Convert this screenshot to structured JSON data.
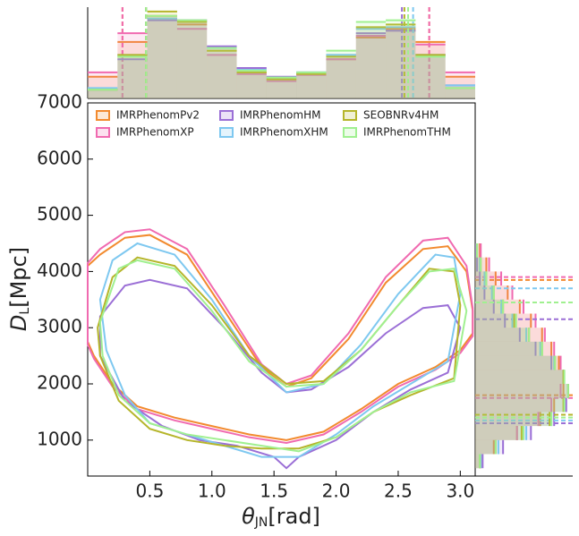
{
  "chart_data": {
    "type": "contour",
    "xlabel": {
      "symbol": "θ",
      "sub": "JN",
      "unit": "[rad]"
    },
    "ylabel": {
      "symbol": "D",
      "sub": "L",
      "unit": "[Mpc]"
    },
    "xlim": [
      0,
      3.12
    ],
    "ylim": [
      360,
      7000
    ],
    "xticks": [
      0.5,
      {
        "value": 1,
        "label": "1.0"
      },
      1.5,
      {
        "value": 2,
        "label": "2.0"
      },
      2.5,
      {
        "value": 3,
        "label": "3.0"
      }
    ],
    "yticks": [
      1000,
      2000,
      3000,
      4000,
      5000,
      6000,
      7000
    ],
    "legend": "upper left",
    "top_hist": {
      "bins": [
        0,
        0.24,
        0.48,
        0.72,
        0.96,
        1.2,
        1.44,
        1.68,
        1.92,
        2.16,
        2.4,
        2.64,
        2.88,
        3.12
      ],
      "ylim": [
        0,
        1.05
      ]
    },
    "right_hist": {
      "bins": [
        500,
        750,
        1000,
        1250,
        1500,
        1750,
        2000,
        2250,
        2500,
        2750,
        3000,
        3250,
        3500,
        3750,
        4000,
        4250,
        4500
      ],
      "xlim": [
        0,
        1.05
      ]
    },
    "series": [
      {
        "name": "IMRPhenomPv2",
        "color": "#f28a2e",
        "theta": [
          0.0,
          0.1,
          0.3,
          0.5,
          0.8,
          1.1,
          1.4,
          1.6,
          1.8,
          2.1,
          2.4,
          2.7,
          2.9,
          3.05,
          3.1,
          3.1,
          3.0,
          2.8,
          2.5,
          2.2,
          1.9,
          1.6,
          1.3,
          1.0,
          0.7,
          0.4,
          0.2,
          0.05,
          0.0
        ],
        "dl": [
          4100,
          4300,
          4600,
          4650,
          4300,
          3300,
          2300,
          1950,
          2100,
          2800,
          3800,
          4400,
          4450,
          4000,
          3300,
          2900,
          2600,
          2300,
          2000,
          1550,
          1150,
          1000,
          1100,
          1250,
          1400,
          1600,
          2000,
          2500,
          2750
        ],
        "theta_hist": [
          0.25,
          0.65,
          0.95,
          0.85,
          0.55,
          0.3,
          0.22,
          0.28,
          0.45,
          0.7,
          0.8,
          0.65,
          0.25
        ],
        "dl_hist": [
          0.05,
          0.2,
          0.45,
          0.7,
          0.85,
          0.95,
          0.95,
          0.9,
          0.82,
          0.72,
          0.6,
          0.48,
          0.35,
          0.22,
          0.12,
          0.05
        ],
        "theta_interval": [
          0.28,
          2.75
        ],
        "dl_interval": [
          1800,
          3850
        ]
      },
      {
        "name": "IMRPhenomXP",
        "color": "#f06ab0",
        "theta": [
          0.0,
          0.1,
          0.3,
          0.5,
          0.8,
          1.1,
          1.4,
          1.6,
          1.8,
          2.1,
          2.4,
          2.7,
          2.9,
          3.05,
          3.1,
          3.1,
          3.0,
          2.8,
          2.5,
          2.2,
          1.9,
          1.6,
          1.3,
          1.0,
          0.7,
          0.4,
          0.2,
          0.05,
          0.0
        ],
        "dl": [
          4150,
          4400,
          4700,
          4750,
          4400,
          3400,
          2350,
          2000,
          2150,
          2900,
          3900,
          4550,
          4600,
          4100,
          3350,
          2850,
          2550,
          2250,
          1950,
          1500,
          1100,
          950,
          1050,
          1200,
          1350,
          1550,
          1950,
          2450,
          2700
        ],
        "theta_hist": [
          0.3,
          0.75,
          0.92,
          0.8,
          0.5,
          0.28,
          0.2,
          0.27,
          0.45,
          0.72,
          0.78,
          0.62,
          0.3
        ],
        "dl_hist": [
          0.06,
          0.22,
          0.45,
          0.68,
          0.82,
          0.92,
          0.95,
          0.92,
          0.85,
          0.75,
          0.65,
          0.52,
          0.4,
          0.28,
          0.15,
          0.06
        ],
        "theta_interval": [
          0.28,
          2.75
        ],
        "dl_interval": [
          1750,
          3900
        ]
      },
      {
        "name": "IMRPhenomHM",
        "color": "#9b6fd6",
        "theta": [
          0.1,
          0.3,
          0.5,
          0.8,
          1.1,
          1.4,
          1.6,
          1.8,
          2.1,
          2.4,
          2.7,
          2.9,
          3.0,
          2.9,
          2.6,
          2.3,
          2.0,
          1.7,
          1.6,
          1.5,
          1.2,
          0.9,
          0.6,
          0.3,
          0.1
        ],
        "dl": [
          3200,
          3750,
          3850,
          3700,
          3000,
          2200,
          1850,
          1900,
          2300,
          2900,
          3350,
          3400,
          3000,
          2200,
          1900,
          1500,
          1000,
          700,
          500,
          700,
          900,
          1000,
          1250,
          1700,
          2500
        ],
        "theta_hist": [
          0.1,
          0.45,
          0.9,
          0.9,
          0.6,
          0.35,
          0.25,
          0.3,
          0.5,
          0.75,
          0.78,
          0.5,
          0.15
        ],
        "dl_hist": [
          0.08,
          0.3,
          0.6,
          0.85,
          0.98,
          1.0,
          0.95,
          0.82,
          0.65,
          0.48,
          0.32,
          0.2,
          0.1,
          0.05,
          0.02,
          0.01
        ],
        "theta_interval": [
          0.47,
          2.53
        ],
        "dl_interval": [
          1300,
          3150
        ]
      },
      {
        "name": "IMRPhenomXHM",
        "color": "#7ec8f0",
        "theta": [
          0.1,
          0.2,
          0.4,
          0.7,
          1.0,
          1.3,
          1.6,
          1.9,
          2.2,
          2.5,
          2.8,
          2.95,
          3.0,
          2.9,
          2.6,
          2.3,
          2.0,
          1.7,
          1.4,
          1.1,
          0.8,
          0.5,
          0.3,
          0.15
        ],
        "dl": [
          3500,
          4200,
          4500,
          4300,
          3500,
          2500,
          1850,
          2000,
          2700,
          3600,
          4300,
          4250,
          3600,
          2400,
          2000,
          1600,
          1100,
          700,
          700,
          900,
          1100,
          1300,
          1800,
          2600
        ],
        "theta_hist": [
          0.12,
          0.5,
          0.92,
          0.88,
          0.58,
          0.33,
          0.24,
          0.3,
          0.5,
          0.8,
          0.82,
          0.5,
          0.15
        ],
        "dl_hist": [
          0.06,
          0.25,
          0.55,
          0.82,
          0.96,
          1.0,
          0.95,
          0.85,
          0.7,
          0.55,
          0.4,
          0.28,
          0.18,
          0.1,
          0.05,
          0.02
        ],
        "theta_interval": [
          0.47,
          2.62
        ],
        "dl_interval": [
          1350,
          3700
        ]
      },
      {
        "name": "SEOBNRv4HM",
        "color": "#b5b52a",
        "theta": [
          0.08,
          0.2,
          0.4,
          0.7,
          1.0,
          1.3,
          1.6,
          1.9,
          2.2,
          2.5,
          2.75,
          2.95,
          3.0,
          2.95,
          2.6,
          2.3,
          2.0,
          1.7,
          1.4,
          1.1,
          0.8,
          0.5,
          0.25,
          0.1
        ],
        "dl": [
          3000,
          3900,
          4250,
          4100,
          3400,
          2500,
          2000,
          2050,
          2600,
          3400,
          4050,
          4000,
          3400,
          2100,
          1800,
          1500,
          1050,
          850,
          850,
          900,
          1000,
          1200,
          1700,
          2500
        ],
        "theta_hist": [
          0.1,
          0.5,
          1.0,
          0.88,
          0.55,
          0.3,
          0.22,
          0.28,
          0.48,
          0.82,
          0.85,
          0.5,
          0.12
        ],
        "dl_hist": [
          0.05,
          0.22,
          0.5,
          0.8,
          0.95,
          1.0,
          0.95,
          0.86,
          0.72,
          0.58,
          0.42,
          0.3,
          0.2,
          0.12,
          0.06,
          0.02
        ],
        "theta_interval": [
          0.47,
          2.55
        ],
        "dl_interval": [
          1450,
          3450
        ]
      },
      {
        "name": "IMRPhenomTHM",
        "color": "#a0f090",
        "theta": [
          0.1,
          0.25,
          0.4,
          0.7,
          1.0,
          1.3,
          1.6,
          1.9,
          2.2,
          2.5,
          2.75,
          2.95,
          3.05,
          2.95,
          2.6,
          2.3,
          2.0,
          1.7,
          1.4,
          1.1,
          0.8,
          0.5,
          0.25,
          0.12
        ],
        "dl": [
          3100,
          4050,
          4200,
          4050,
          3300,
          2400,
          1950,
          2000,
          2600,
          3400,
          4000,
          4050,
          3300,
          2050,
          1850,
          1500,
          1050,
          800,
          900,
          1000,
          1100,
          1300,
          1800,
          2500
        ],
        "theta_hist": [
          0.1,
          0.48,
          0.95,
          0.9,
          0.58,
          0.32,
          0.24,
          0.3,
          0.55,
          0.88,
          0.9,
          0.48,
          0.12
        ],
        "dl_hist": [
          0.05,
          0.22,
          0.52,
          0.82,
          0.96,
          1.0,
          0.96,
          0.86,
          0.72,
          0.58,
          0.44,
          0.3,
          0.2,
          0.12,
          0.06,
          0.02
        ],
        "theta_interval": [
          0.47,
          2.58
        ],
        "dl_interval": [
          1400,
          3450
        ]
      }
    ]
  }
}
